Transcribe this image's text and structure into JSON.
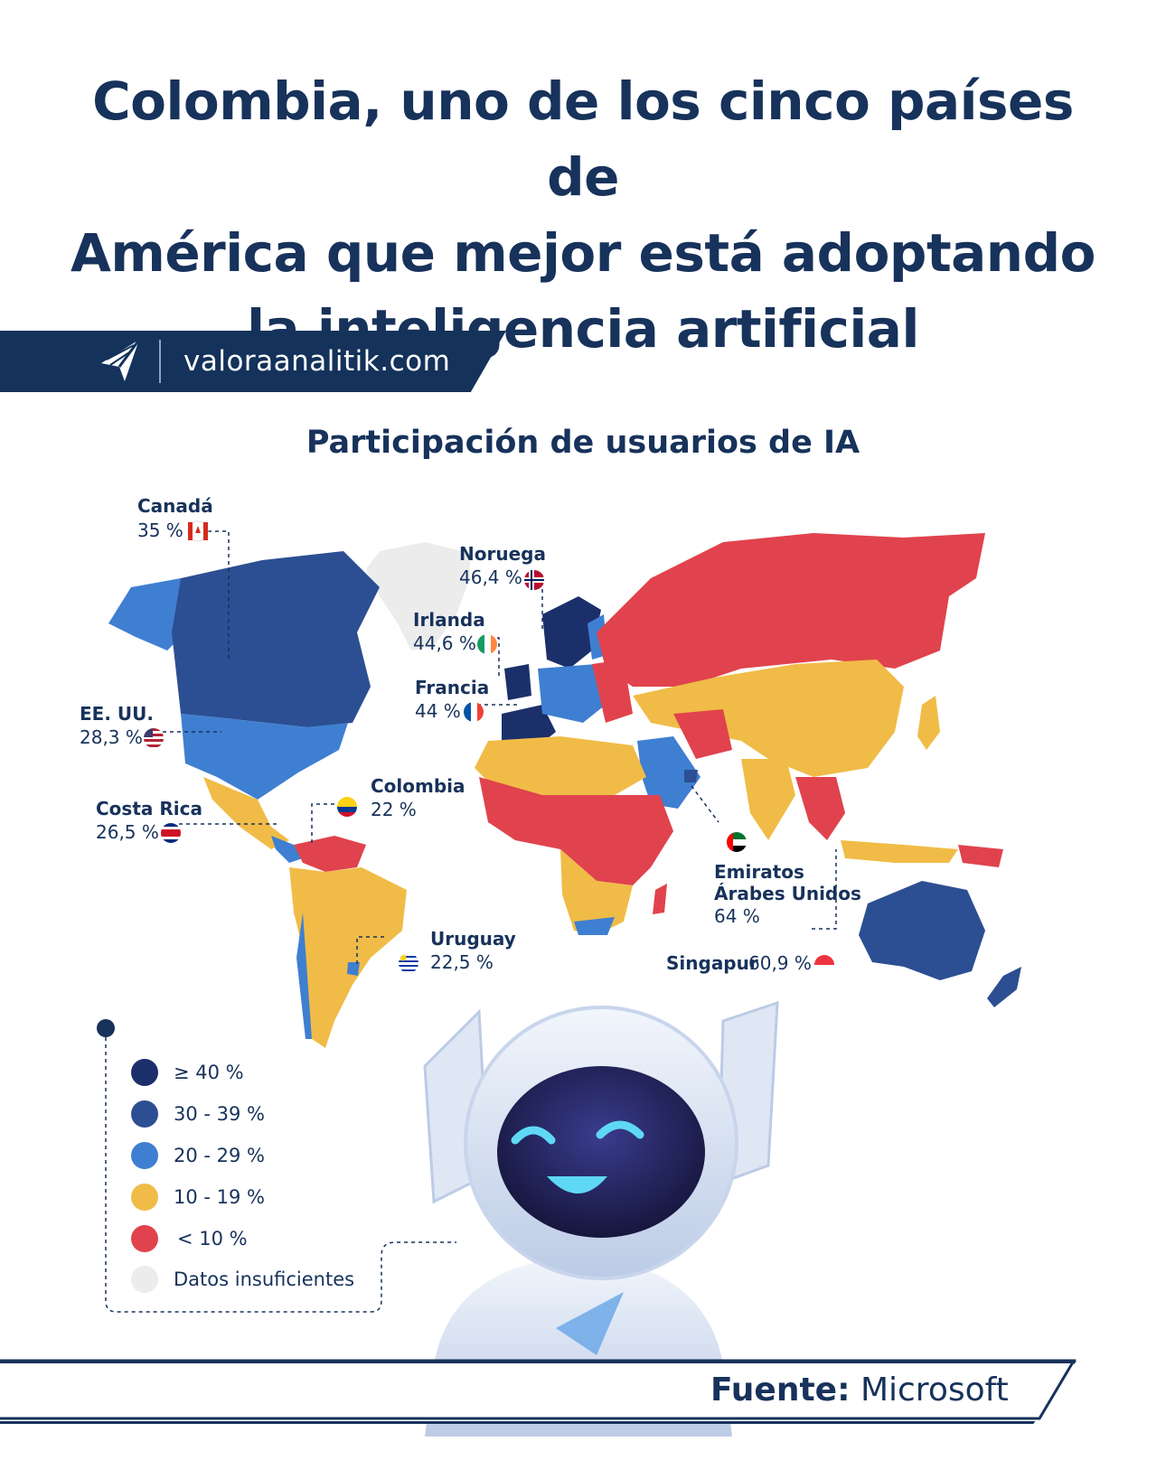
{
  "headline": {
    "line1": "Colombia, uno de los cinco países de",
    "line2": "América que mejor está adoptando",
    "line3": "la inteligencia artificial"
  },
  "brand": {
    "url": "valoraanalitik.com",
    "logo_icon": "paper-plane-icon"
  },
  "map": {
    "title": "Participación de usuarios de IA"
  },
  "chart_data": {
    "type": "choropleth",
    "title": "Participación de usuarios de IA",
    "unit": "%",
    "labeled_countries": [
      {
        "name": "Canadá",
        "value_label": "35 %",
        "value": 35,
        "flag": "canada-flag-icon"
      },
      {
        "name": "Noruega",
        "value_label": "46,4 %",
        "value": 46.4,
        "flag": "norway-flag-icon"
      },
      {
        "name": "Irlanda",
        "value_label": "44,6 %",
        "value": 44.6,
        "flag": "ireland-flag-icon"
      },
      {
        "name": "Francia",
        "value_label": "44 %",
        "value": 44,
        "flag": "france-flag-icon"
      },
      {
        "name": "EE. UU.",
        "value_label": "28,3 %",
        "value": 28.3,
        "flag": "usa-flag-icon"
      },
      {
        "name": "Colombia",
        "value_label": "22 %",
        "value": 22,
        "flag": "colombia-flag-icon"
      },
      {
        "name": "Costa Rica",
        "value_label": "26,5 %",
        "value": 26.5,
        "flag": "costa-rica-flag-icon"
      },
      {
        "name": "Emiratos Árabes Unidos",
        "value_label": "64 %",
        "value": 64,
        "flag": "uae-flag-icon"
      },
      {
        "name": "Uruguay",
        "value_label": "22,5 %",
        "value": 22.5,
        "flag": "uruguay-flag-icon"
      },
      {
        "name": "Singapur",
        "value_label": "60,9 %",
        "value": 60.9,
        "flag": "singapore-flag-icon"
      }
    ],
    "legend": [
      {
        "label": "≥ 40 %",
        "color": "#1b2f6b"
      },
      {
        "label": "30 - 39 %",
        "color": "#2c4f93"
      },
      {
        "label": "20 - 29 %",
        "color": "#3f7fd1"
      },
      {
        "label": "10 - 19 %",
        "color": "#f0bc47"
      },
      {
        "label": "< 10 %",
        "color": "#e0434d"
      },
      {
        "label": "Datos insuficientes",
        "color": "#ececec"
      }
    ]
  },
  "labels": {
    "emiratos_line1": "Emiratos",
    "emiratos_line2": "Árabes Unidos"
  },
  "source": {
    "prefix": "Fuente:",
    "name": "Microsoft"
  },
  "colors": {
    "navy": "#17325b",
    "brand_bar": "#14325a"
  }
}
